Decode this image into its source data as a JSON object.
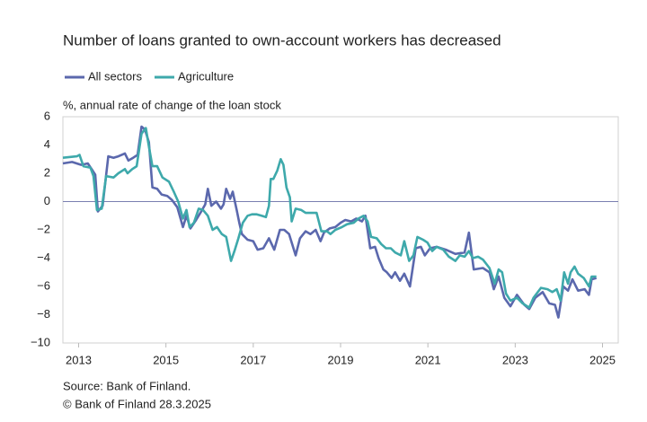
{
  "chart_data": {
    "type": "line",
    "title": "Number of loans granted to own-account workers has decreased",
    "y_label": "%, annual rate of change of the loan stock",
    "source": "Source: Bank of Finland.",
    "copyright": "© Bank of Finland 28.3.2025",
    "xlim": [
      2012.64,
      2025.36
    ],
    "xticks": [
      2013,
      2015,
      2017,
      2019,
      2021,
      2023,
      2025
    ],
    "ylim": [
      -10,
      6
    ],
    "yticks": [
      {
        "value": -10,
        "label": "−10"
      },
      {
        "value": -8,
        "label": "−8"
      },
      {
        "value": -6,
        "label": "−6"
      },
      {
        "value": -4,
        "label": "−4"
      },
      {
        "value": -2,
        "label": "−2"
      },
      0,
      2,
      4,
      6
    ],
    "grid": false,
    "legend": "top-left",
    "series": [
      {
        "name": "All sectors",
        "color": "#5b68ad",
        "x": [
          2012.64,
          2012.85,
          2013.06,
          2013.21,
          2013.32,
          2013.38,
          2013.44,
          2013.55,
          2013.68,
          2013.8,
          2013.91,
          2014.06,
          2014.14,
          2014.25,
          2014.35,
          2014.44,
          2014.52,
          2014.61,
          2014.69,
          2014.8,
          2014.9,
          2015.03,
          2015.14,
          2015.26,
          2015.39,
          2015.47,
          2015.56,
          2015.69,
          2015.79,
          2015.9,
          2015.96,
          2016.04,
          2016.15,
          2016.26,
          2016.32,
          2016.38,
          2016.47,
          2016.53,
          2016.62,
          2016.68,
          2016.74,
          2016.87,
          2017.0,
          2017.1,
          2017.23,
          2017.36,
          2017.48,
          2017.61,
          2017.71,
          2017.82,
          2017.97,
          2018.07,
          2018.2,
          2018.31,
          2018.43,
          2018.54,
          2018.62,
          2018.75,
          2018.88,
          2019.0,
          2019.11,
          2019.24,
          2019.36,
          2019.49,
          2019.57,
          2019.68,
          2019.79,
          2019.87,
          2019.98,
          2020.06,
          2020.17,
          2020.25,
          2020.36,
          2020.46,
          2020.59,
          2020.72,
          2020.84,
          2020.93,
          2021.05,
          2021.2,
          2021.41,
          2021.63,
          2021.84,
          2021.94,
          2022.05,
          2022.26,
          2022.41,
          2022.51,
          2022.62,
          2022.75,
          2022.89,
          2023.04,
          2023.21,
          2023.32,
          2023.46,
          2023.63,
          2023.78,
          2023.91,
          2023.99,
          2024.1,
          2024.21,
          2024.31,
          2024.44,
          2024.59,
          2024.69,
          2024.75,
          2024.86
        ],
        "values": [
          2.7,
          2.8,
          2.6,
          2.7,
          2.2,
          1.9,
          -0.7,
          -0.3,
          3.2,
          3.1,
          3.2,
          3.4,
          2.9,
          3.1,
          3.3,
          5.3,
          5.1,
          4.2,
          1.0,
          0.9,
          0.5,
          0.4,
          0.1,
          -0.4,
          -1.8,
          -1.0,
          -1.9,
          -1.3,
          -0.8,
          -0.2,
          0.9,
          -0.3,
          0.0,
          -0.5,
          -0.2,
          0.9,
          0.2,
          0.7,
          -0.6,
          -1.5,
          -2.3,
          -2.7,
          -2.8,
          -3.4,
          -3.3,
          -2.6,
          -3.4,
          -2.0,
          -2.0,
          -2.3,
          -3.8,
          -2.6,
          -2.1,
          -2.3,
          -2.0,
          -2.8,
          -2.2,
          -1.9,
          -1.8,
          -1.5,
          -1.3,
          -1.4,
          -1.2,
          -1.4,
          -1.0,
          -3.3,
          -3.2,
          -4.0,
          -4.8,
          -5.0,
          -5.4,
          -5.0,
          -5.6,
          -5.1,
          -6.0,
          -3.3,
          -3.2,
          -3.8,
          -3.3,
          -3.2,
          -3.4,
          -3.7,
          -3.6,
          -2.2,
          -4.8,
          -4.7,
          -5.0,
          -6.2,
          -5.3,
          -6.8,
          -7.4,
          -6.6,
          -7.3,
          -7.6,
          -6.8,
          -6.4,
          -7.2,
          -7.3,
          -8.2,
          -6.0,
          -6.3,
          -5.5,
          -6.3,
          -6.2,
          -6.6,
          -5.5,
          -5.4
        ]
      },
      {
        "name": "Agriculture",
        "color": "#3ea9ab",
        "x": [
          2012.64,
          2012.96,
          2013.02,
          2013.11,
          2013.27,
          2013.34,
          2013.42,
          2013.53,
          2013.63,
          2013.8,
          2013.91,
          2014.06,
          2014.12,
          2014.23,
          2014.33,
          2014.44,
          2014.54,
          2014.61,
          2014.69,
          2014.8,
          2014.92,
          2015.07,
          2015.18,
          2015.28,
          2015.39,
          2015.47,
          2015.54,
          2015.64,
          2015.75,
          2015.85,
          2015.96,
          2016.07,
          2016.17,
          2016.28,
          2016.38,
          2016.49,
          2016.57,
          2016.66,
          2016.76,
          2016.87,
          2016.97,
          2017.08,
          2017.19,
          2017.29,
          2017.36,
          2017.4,
          2017.46,
          2017.55,
          2017.63,
          2017.69,
          2017.76,
          2017.84,
          2017.88,
          2017.97,
          2018.1,
          2018.2,
          2018.35,
          2018.45,
          2018.56,
          2018.69,
          2018.77,
          2018.88,
          2019.03,
          2019.15,
          2019.3,
          2019.41,
          2019.53,
          2019.62,
          2019.7,
          2019.83,
          2019.93,
          2020.04,
          2020.15,
          2020.25,
          2020.38,
          2020.46,
          2020.57,
          2020.67,
          2020.76,
          2020.89,
          2020.99,
          2021.1,
          2021.2,
          2021.35,
          2021.48,
          2021.63,
          2021.73,
          2021.84,
          2021.94,
          2022.03,
          2022.15,
          2022.26,
          2022.41,
          2022.53,
          2022.62,
          2022.7,
          2022.79,
          2022.89,
          2023.04,
          2023.17,
          2023.32,
          2023.42,
          2023.59,
          2023.74,
          2023.85,
          2023.95,
          2024.04,
          2024.12,
          2024.21,
          2024.27,
          2024.36,
          2024.44,
          2024.57,
          2024.69,
          2024.75,
          2024.86
        ],
        "values": [
          3.1,
          3.2,
          3.3,
          2.5,
          2.4,
          1.8,
          -0.6,
          -0.5,
          1.8,
          1.7,
          2.0,
          2.3,
          2.0,
          2.3,
          2.5,
          4.8,
          5.2,
          3.9,
          2.5,
          2.5,
          1.7,
          1.4,
          0.7,
          0.0,
          -1.2,
          -0.6,
          -1.8,
          -1.5,
          -0.5,
          -0.6,
          -1.0,
          -2.0,
          -1.8,
          -2.3,
          -2.5,
          -4.2,
          -3.5,
          -2.6,
          -1.5,
          -1.0,
          -0.9,
          -0.9,
          -1.0,
          -1.1,
          -0.3,
          1.6,
          1.6,
          2.2,
          3.0,
          2.6,
          1.0,
          0.3,
          -1.4,
          -0.5,
          -0.6,
          -0.8,
          -0.8,
          -0.8,
          -2.1,
          -2.1,
          -2.3,
          -2.0,
          -1.8,
          -1.6,
          -1.5,
          -1.2,
          -1.0,
          -1.4,
          -2.5,
          -2.6,
          -3.0,
          -3.3,
          -3.3,
          -3.6,
          -3.8,
          -2.8,
          -4.2,
          -3.8,
          -2.5,
          -2.7,
          -2.9,
          -3.5,
          -3.2,
          -3.4,
          -3.9,
          -4.2,
          -3.8,
          -3.9,
          -3.5,
          -4.0,
          -3.9,
          -4.1,
          -4.7,
          -5.8,
          -4.8,
          -5.0,
          -6.5,
          -7.0,
          -6.8,
          -7.2,
          -7.5,
          -6.8,
          -6.1,
          -6.2,
          -6.4,
          -6.2,
          -7.0,
          -5.0,
          -5.8,
          -5.0,
          -4.6,
          -5.1,
          -5.4,
          -6.0,
          -5.3,
          -5.3
        ]
      }
    ]
  }
}
